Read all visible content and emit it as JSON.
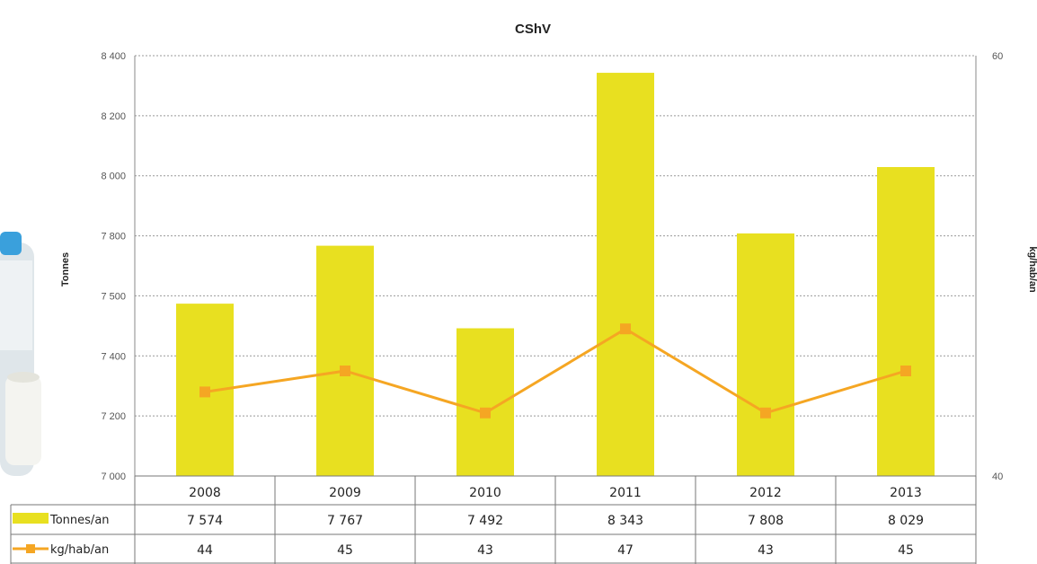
{
  "chart_data": {
    "type": "bar",
    "title": "CShV",
    "categories": [
      "2008",
      "2009",
      "2010",
      "2011",
      "2012",
      "2013"
    ],
    "series": [
      {
        "name": "Tonnes/an",
        "type": "bar",
        "axis": "left",
        "values": [
          7574,
          7767,
          7492,
          8343,
          7808,
          8029
        ],
        "labels": [
          "7 574",
          "7 767",
          "7 492",
          "8 343",
          "7 808",
          "8 029"
        ],
        "color": "#e8e020"
      },
      {
        "name": "kg/hab/an",
        "type": "line",
        "axis": "right",
        "values": [
          44,
          45,
          43,
          47,
          43,
          45
        ],
        "labels": [
          "44",
          "45",
          "43",
          "47",
          "43",
          "45"
        ],
        "color": "#f5a623"
      }
    ],
    "ylabel": "Tonnes",
    "y2label": "kg/hab/an",
    "ylim": [
      7000,
      8400
    ],
    "y2lim": [
      40,
      60
    ],
    "yticks": [
      "7 000",
      "7 200",
      "7 400",
      "7 500",
      "7 800",
      "8 000",
      "8 200",
      "8 400"
    ],
    "y2ticks": [
      "40",
      "60"
    ],
    "grid": true,
    "legend": "data-table-left"
  }
}
